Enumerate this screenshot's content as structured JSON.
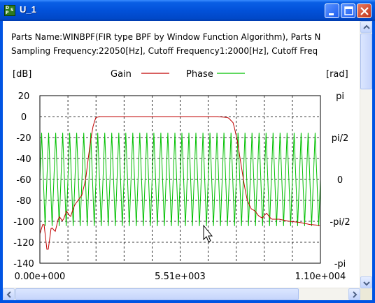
{
  "window": {
    "title": "U_1",
    "icon_text": [
      "D",
      "S",
      "P"
    ],
    "icon_name": "dsp-app-icon",
    "buttons": {
      "minimize": "minimize-icon",
      "maximize": "maximize-icon",
      "close": "close-icon"
    }
  },
  "info": {
    "line1": "Parts Name:WINBPF(FIR type BPF by Window Function Algorithm), Parts N",
    "line2": "Sampling Frequency:22050[Hz], Cutoff Frequency1:2000[Hz], Cutoff Freq"
  },
  "chart_data": {
    "type": "line",
    "title": "",
    "xlabel": "",
    "x_ticks": [
      "0.00e+000",
      "5.51e+003",
      "1.10e+004"
    ],
    "x_range": [
      0,
      11025
    ],
    "y_left_unit": "[dB]",
    "y_left_ticks": [
      "20",
      "0",
      "-20",
      "-40",
      "-60",
      "-80",
      "-100",
      "-120",
      "-140"
    ],
    "y_left_range": [
      -140,
      20
    ],
    "y_right_unit": "[rad]",
    "y_right_ticks": [
      "pi",
      "pi/2",
      "0",
      "-pi/2",
      "-pi"
    ],
    "y_right_range": [
      -3.1416,
      3.1416
    ],
    "grid": true,
    "legend_placement": "top-center",
    "series": [
      {
        "name": "Gain",
        "color": "#c00000",
        "axis": "left",
        "x": [
          0,
          150,
          300,
          450,
          600,
          750,
          900,
          1050,
          1200,
          1350,
          1500,
          1650,
          1800,
          1900,
          2000,
          2100,
          2200,
          2350,
          2500,
          2700,
          3000,
          4000,
          5000,
          6000,
          7000,
          7400,
          7600,
          7750,
          7900,
          8050,
          8150,
          8300,
          8450,
          8600,
          8750,
          8900,
          9100,
          9400,
          9800,
          10200,
          10600,
          11025
        ],
        "values": [
          -112,
          -100,
          -132,
          -105,
          -110,
          -95,
          -100,
          -90,
          -96,
          -85,
          -80,
          -75,
          -60,
          -40,
          -22,
          -8,
          -1,
          0,
          0,
          0,
          0,
          0,
          0,
          0,
          0,
          -1,
          -6,
          -22,
          -45,
          -68,
          -80,
          -88,
          -90,
          -95,
          -97,
          -92,
          -98,
          -98,
          -100,
          -101,
          -103,
          -104
        ]
      },
      {
        "name": "Phase",
        "color": "#00c000",
        "axis": "right",
        "oscillation_period_hz": 275.6,
        "values": [
          0.0,
          1.75,
          0.0,
          -1.75
        ],
        "amplitude_rad": 1.75
      }
    ]
  }
}
